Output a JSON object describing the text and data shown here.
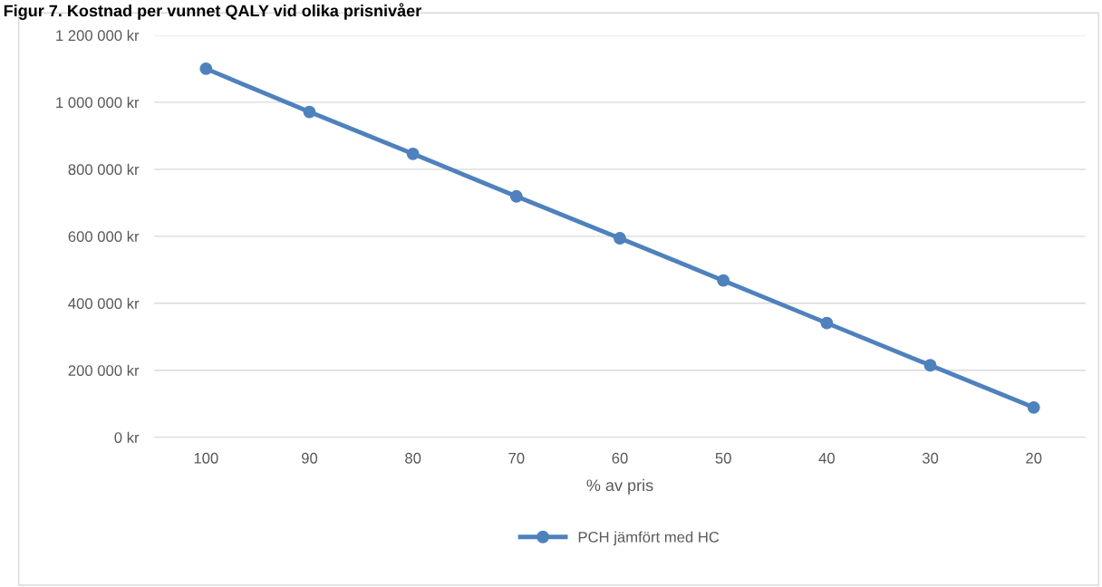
{
  "chart_data": {
    "type": "line",
    "title": "Figur 7. Kostnad per vunnet QALY vid olika prisnivåer",
    "xlabel": "% av pris",
    "categories": [
      "100",
      "90",
      "80",
      "70",
      "60",
      "50",
      "40",
      "30",
      "20"
    ],
    "series": [
      {
        "name": "PCH jämfört med HC",
        "color": "#4f81bd",
        "values": [
          1100000,
          971000,
          846000,
          719000,
          594000,
          468000,
          341000,
          215000,
          89000
        ]
      }
    ],
    "ylim": [
      0,
      1200000
    ],
    "yticks": [
      {
        "value": 0,
        "label": "0 kr"
      },
      {
        "value": 200000,
        "label": "200 000 kr"
      },
      {
        "value": 400000,
        "label": "400 000 kr"
      },
      {
        "value": 600000,
        "label": "600 000 kr"
      },
      {
        "value": 800000,
        "label": "800 000 kr"
      },
      {
        "value": 1000000,
        "label": "1 000 000 kr"
      },
      {
        "value": 1200000,
        "label": "1 200 000 kr"
      }
    ],
    "grid": "y",
    "legend": "bottom",
    "marker": "circle",
    "line_style": "solid"
  }
}
